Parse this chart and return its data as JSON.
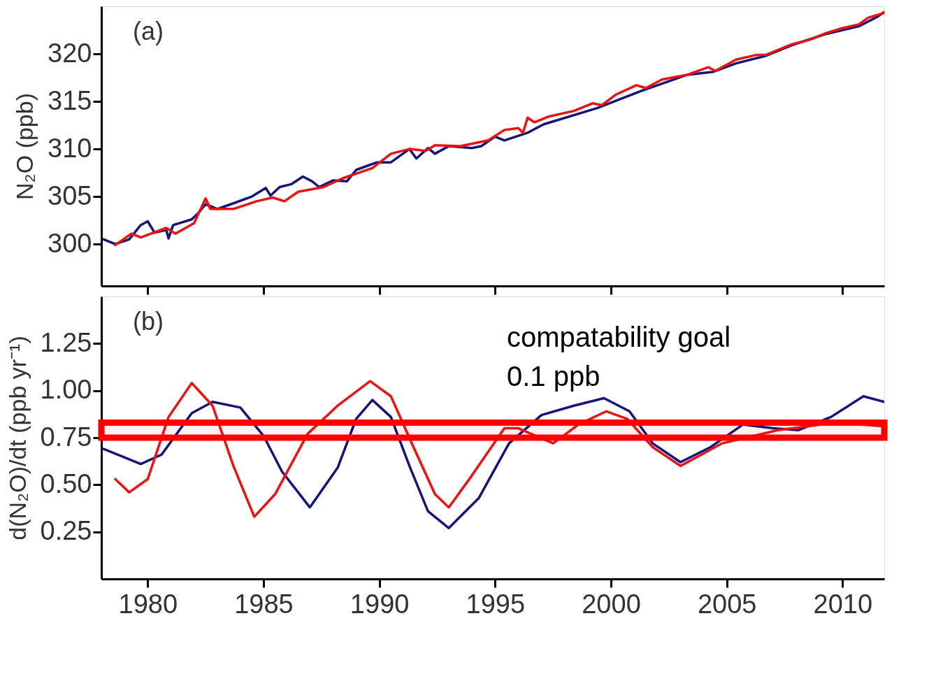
{
  "chart_data": [
    {
      "type": "line",
      "ylabel": "N₂O (ppb)",
      "xlim": [
        1978,
        2011.8
      ],
      "xticks": [
        1980,
        1985,
        1990,
        1995,
        2000,
        2005,
        2010
      ],
      "ylim": [
        295.6,
        325
      ],
      "yticks": [
        300,
        305,
        310,
        315,
        320
      ],
      "tick_labels": "y",
      "grid": false,
      "annotations": [
        "(a)"
      ],
      "series": [
        {
          "color": "#14147a",
          "x": [
            1978.1,
            1978.6,
            1979.2,
            1979.7,
            1980.0,
            1980.3,
            1980.8,
            1980.9,
            1981.1,
            1981.9,
            1982.2,
            1982.5,
            1983.0,
            1983.6,
            1984.5,
            1985.1,
            1985.3,
            1985.7,
            1986.2,
            1986.7,
            1987.1,
            1987.4,
            1988.0,
            1988.6,
            1989.0,
            1989.9,
            1990.5,
            1991.3,
            1991.6,
            1992.1,
            1992.4,
            1993.0,
            1994.0,
            1994.4,
            1995.0,
            1995.4,
            1996.4,
            1997.1,
            1999.4,
            2001.3,
            2003.3,
            2004.4,
            2005.4,
            2006.7,
            2007.8,
            2009.3,
            2010.7,
            2011.5,
            2011.8
          ],
          "values": [
            300.5,
            300.0,
            300.5,
            302.0,
            302.4,
            301.2,
            301.5,
            300.6,
            302.0,
            302.6,
            303.3,
            304.2,
            303.7,
            304.2,
            305.0,
            305.9,
            305.1,
            306.0,
            306.3,
            307.1,
            306.6,
            306.0,
            306.7,
            306.6,
            307.8,
            308.6,
            308.6,
            310.0,
            309.0,
            310.1,
            309.5,
            310.3,
            310.1,
            310.3,
            311.3,
            310.9,
            311.7,
            312.6,
            314.3,
            316.1,
            317.8,
            318.1,
            319.0,
            319.8,
            320.9,
            322.1,
            322.9,
            323.9,
            324.4
          ]
        },
        {
          "color": "#ee1111",
          "x": [
            1978.6,
            1979.3,
            1979.7,
            1980.8,
            1981.2,
            1982.0,
            1982.5,
            1982.7,
            1983.7,
            1984.7,
            1985.4,
            1985.9,
            1986.5,
            1987.6,
            1988.4,
            1989.7,
            1990.5,
            1991.3,
            1992.0,
            1992.4,
            1993.5,
            1994.7,
            1995.4,
            1996.0,
            1996.2,
            1996.4,
            1996.7,
            1997.3,
            1998.4,
            1999.2,
            1999.6,
            2000.2,
            2001.1,
            2001.5,
            2002.2,
            2003.3,
            2004.2,
            2004.5,
            2005.4,
            2006.3,
            2006.7,
            2007.8,
            2008.6,
            2009.3,
            2010.0,
            2010.7,
            2011.1,
            2011.8
          ],
          "values": [
            299.9,
            301.1,
            300.7,
            301.7,
            301.1,
            302.2,
            304.8,
            303.7,
            303.7,
            304.5,
            304.9,
            304.5,
            305.5,
            306.0,
            306.9,
            308.0,
            309.5,
            310.0,
            309.8,
            310.4,
            310.3,
            310.9,
            312.0,
            312.2,
            311.7,
            313.3,
            312.8,
            313.4,
            314.0,
            314.8,
            314.6,
            315.7,
            316.7,
            316.4,
            317.3,
            317.8,
            318.6,
            318.2,
            319.4,
            319.9,
            319.9,
            321.0,
            321.5,
            322.2,
            322.7,
            323.1,
            323.8,
            324.3
          ]
        }
      ]
    },
    {
      "type": "line",
      "ylabel": "d(N₂O)/dt (ppb yr⁻¹)",
      "xlim": [
        1978,
        2011.8
      ],
      "xticks": [
        1980,
        1985,
        1990,
        1995,
        2000,
        2005,
        2010
      ],
      "ylim": [
        0,
        1.5
      ],
      "yticks": [
        {
          "value": 0.25,
          "label": "0.25"
        },
        {
          "value": 0.5,
          "label": "0.50"
        },
        {
          "value": 0.75,
          "label": "0.75"
        },
        {
          "value": 1.0,
          "label": "1.00"
        },
        {
          "value": 1.25,
          "label": "1.25"
        }
      ],
      "grid": false,
      "annotations": [
        "(b)"
      ],
      "bands": [
        {
          "axis": "y",
          "from": 0.75,
          "to": 0.83,
          "label": "compatability goal\n0.1 ppb",
          "color": "#ff0000"
        }
      ],
      "series": [
        {
          "color": "#14147a",
          "x": [
            1978.1,
            1979.7,
            1980.6,
            1981.9,
            1982.8,
            1984.0,
            1985.0,
            1985.8,
            1987.0,
            1988.2,
            1989.0,
            1989.7,
            1990.5,
            1991.3,
            1992.1,
            1993.0,
            1994.3,
            1995.6,
            1997.0,
            1998.4,
            1999.7,
            2000.8,
            2001.8,
            2003.0,
            2004.3,
            2005.7,
            2007.0,
            2008.1,
            2009.5,
            2010.9,
            2011.8
          ],
          "values": [
            0.69,
            0.61,
            0.66,
            0.88,
            0.94,
            0.91,
            0.76,
            0.57,
            0.38,
            0.59,
            0.85,
            0.95,
            0.86,
            0.6,
            0.36,
            0.27,
            0.43,
            0.72,
            0.87,
            0.92,
            0.96,
            0.89,
            0.72,
            0.62,
            0.7,
            0.82,
            0.8,
            0.79,
            0.86,
            0.97,
            0.94
          ]
        },
        {
          "color": "#ee1111",
          "x": [
            1978.6,
            1979.2,
            1980.0,
            1980.9,
            1981.9,
            1982.8,
            1983.7,
            1984.6,
            1985.5,
            1986.9,
            1988.2,
            1989.6,
            1990.5,
            1991.4,
            1992.4,
            1993.0,
            1994.0,
            1995.4,
            1996.0,
            1997.5,
            1998.6,
            1999.8,
            2000.7,
            2001.8,
            2003.0,
            2004.8,
            2007.2,
            2009.7,
            2011.8
          ],
          "values": [
            0.53,
            0.46,
            0.53,
            0.86,
            1.04,
            0.92,
            0.6,
            0.33,
            0.45,
            0.77,
            0.92,
            1.05,
            0.97,
            0.72,
            0.45,
            0.38,
            0.55,
            0.8,
            0.8,
            0.72,
            0.82,
            0.89,
            0.85,
            0.7,
            0.6,
            0.72,
            0.79,
            0.83,
            0.81
          ]
        }
      ]
    }
  ]
}
